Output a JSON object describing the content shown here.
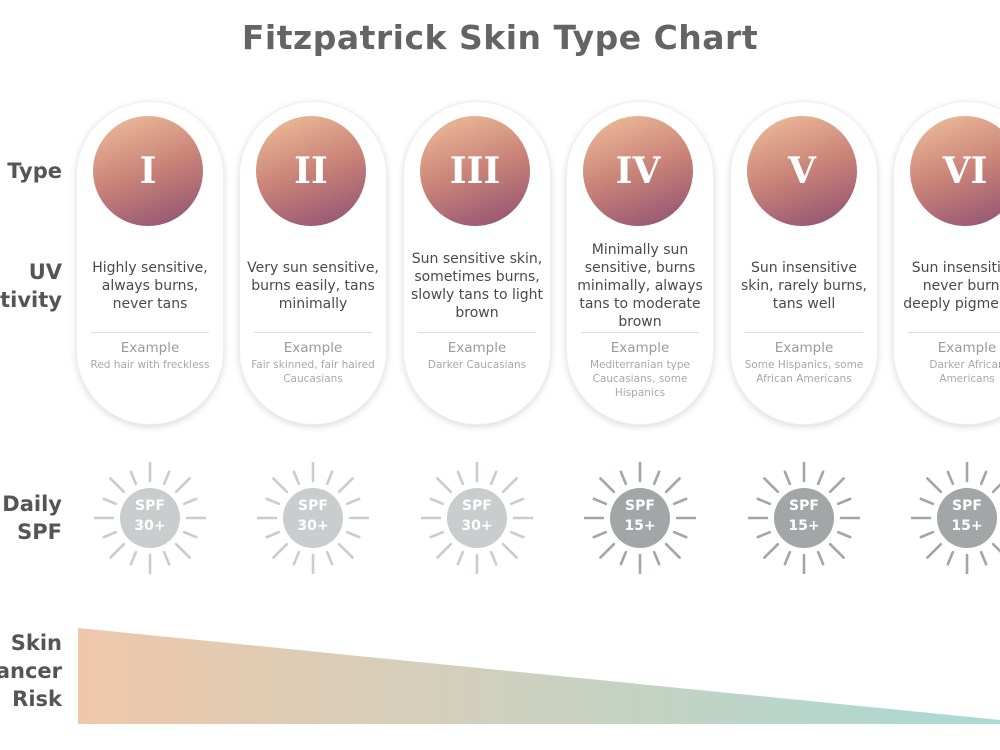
{
  "title": "Fitzpatrick Skin Type Chart",
  "row_labels": {
    "skin_type": "n Type",
    "uv_line1": "UV",
    "uv_line2": "itivity",
    "spf_line1": "Daily",
    "spf_line2": "SPF",
    "risk_line1": "Skin",
    "risk_line2": "ancer",
    "risk_line3": "Risk"
  },
  "colors": {
    "disc_gradient": [
      "#f0c09c",
      "#c98378",
      "#8d4f73"
    ],
    "sun_light": "#c9cdcd",
    "sun_dark": "#a2a6a6",
    "risk_gradient": [
      "#efc7ab",
      "#a9dad3"
    ]
  },
  "skin_types": [
    {
      "numeral": "I",
      "description": "Highly sensitive, always burns, never tans",
      "example_label": "Example",
      "example": "Red hair with freckless",
      "spf": "SPF 30+",
      "spf_shade": "light"
    },
    {
      "numeral": "II",
      "description": "Very sun sensitive, burns easily, tans minimally",
      "example_label": "Example",
      "example": "Fair skinned, fair haired Caucasians",
      "spf": "SPF 30+",
      "spf_shade": "light"
    },
    {
      "numeral": "III",
      "description": "Sun sensitive skin, sometimes burns, slowly tans to light brown",
      "example_label": "Example",
      "example": "Darker Caucasians",
      "spf": "SPF 30+",
      "spf_shade": "light"
    },
    {
      "numeral": "IV",
      "description": "Minimally sun sensitive, burns minimally, always tans to moderate brown",
      "example_label": "Example",
      "example": "Mediterranian type Caucasians, some Hispanics",
      "spf": "SPF 15+",
      "spf_shade": "dark"
    },
    {
      "numeral": "V",
      "description": "Sun insensitive skin, rarely burns, tans well",
      "example_label": "Example",
      "example": "Some Hispanics, some African Americans",
      "spf": "SPF 15+",
      "spf_shade": "dark"
    },
    {
      "numeral": "VI",
      "description": "Sun insensitive, never burns, deeply pigmented",
      "example_label": "Example",
      "example": "Darker African Americans",
      "spf": "SPF 15+",
      "spf_shade": "dark"
    }
  ]
}
